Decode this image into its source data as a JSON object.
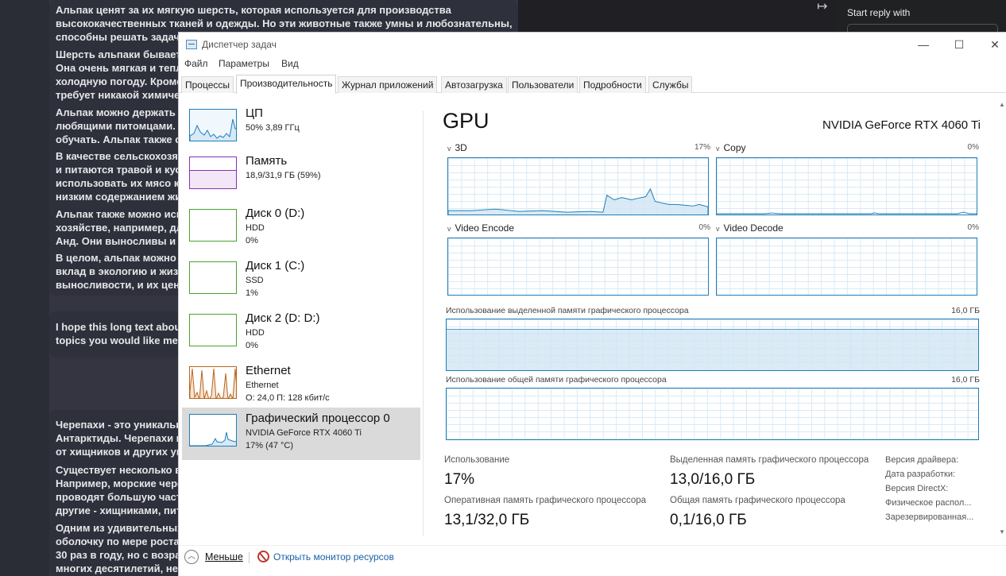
{
  "background": {
    "right_panel_title": "Start reply with",
    "messages": [
      {
        "lines": [
          "Альпак ценят за их мягкую шерсть, которая используется для производства",
          "высококачественных тканей и одежды. Но эти животные также умны и любознательны, они",
          "способны решать задачи"
        ]
      },
      {
        "lines": [
          "Шерсть альпаки бывает р",
          "Она очень мягкая и тепла",
          "холодную погоду. Кроме т",
          "требует никакой химичес"
        ]
      },
      {
        "lines": [
          "Альпак можно держать ка",
          "любящими питомцами. С",
          "обучать. Альпак также от"
        ]
      },
      {
        "lines": [
          "В качестве сельскохозяйс",
          "и питаются травой и куст",
          "использовать их мясо как",
          "низким содержанием жи"
        ]
      },
      {
        "lines": [
          "Альпак также можно испо",
          "хозяйстве, например, для",
          "Анд. Они выносливы и мо"
        ]
      },
      {
        "lines": [
          "В целом, альпак можно н",
          "вклад в экологию и жизн",
          "выносливости, и их ценят"
        ]
      },
      {
        "lines": [
          "I hope this long text about",
          "topics you would like me to"
        ]
      },
      {
        "lines": [
          "Черепахи - это уникальн",
          "Антарктиды. Черепахи из",
          "от хищников и других угр"
        ]
      },
      {
        "lines": [
          "Существует несколько ви",
          "Например, морские череп",
          "проводят большую часть",
          "другие - хищниками, пита"
        ]
      },
      {
        "lines": [
          "Одним из удивительных",
          "оболочку по мере роста.",
          "30 раз в году, но с возраст",
          "многих десятилетий, неко"
        ]
      }
    ]
  },
  "window": {
    "title": "Диспетчер задач",
    "menu": [
      "Файл",
      "Параметры",
      "Вид"
    ],
    "tabs": [
      "Процессы",
      "Производительность",
      "Журнал приложений",
      "Автозагрузка",
      "Пользователи",
      "Подробности",
      "Службы"
    ],
    "active_tab": "Производительность"
  },
  "resources": [
    {
      "name": "ЦП",
      "line2": "50% 3,89 ГГц",
      "line3": "",
      "color": "#1f7db8"
    },
    {
      "name": "Память",
      "line2": "18,9/31,9 ГБ (59%)",
      "line3": "",
      "color": "#8b2fb5"
    },
    {
      "name": "Диск 0 (D:)",
      "line2": "HDD",
      "line3": "0%",
      "color": "#4aa329"
    },
    {
      "name": "Диск 1 (C:)",
      "line2": "SSD",
      "line3": "1%",
      "color": "#4aa329"
    },
    {
      "name": "Диск 2 (D: D:)",
      "line2": "HDD",
      "line3": "0%",
      "color": "#4aa329"
    },
    {
      "name": "Ethernet",
      "line2": "Ethernet",
      "line3": "О: 24,0  П: 128 кбит/с",
      "color": "#b8651c"
    },
    {
      "name": "Графический процессор 0",
      "line2": "NVIDIA GeForce RTX 4060 Ti",
      "line3": "17% (47 °C)",
      "color": "#1f7db8"
    }
  ],
  "gpu": {
    "title": "GPU",
    "model": "NVIDIA GeForce RTX 4060 Ti",
    "engines": [
      {
        "name": "3D",
        "percent": "17%"
      },
      {
        "name": "Copy",
        "percent": "0%"
      },
      {
        "name": "Video Encode",
        "percent": "0%"
      },
      {
        "name": "Video Decode",
        "percent": "0%"
      }
    ],
    "dedicated_memory_label": "Использование выделенной памяти графического процессора",
    "dedicated_memory_max": "16,0 ГБ",
    "shared_memory_label": "Использование общей памяти графического процессора",
    "shared_memory_max": "16,0 ГБ",
    "stats": {
      "usage_label": "Использование",
      "usage_value": "17%",
      "dedicated_label": "Выделенная память графического процессора",
      "dedicated_value": "13,0/16,0 ГБ",
      "ram_label": "Оперативная память графического процессора",
      "ram_value": "13,1/32,0 ГБ",
      "shared_label": "Общая память графического процессора",
      "shared_value": "0,1/16,0 ГБ"
    },
    "driver_info": [
      "Версия драйвера:",
      "Дата разработки:",
      "Версия DirectX:",
      "Физическое распол...",
      "Зарезервированная..."
    ]
  },
  "footer": {
    "less_label": "Меньше",
    "monitor_label": "Открыть монитор ресурсов"
  }
}
